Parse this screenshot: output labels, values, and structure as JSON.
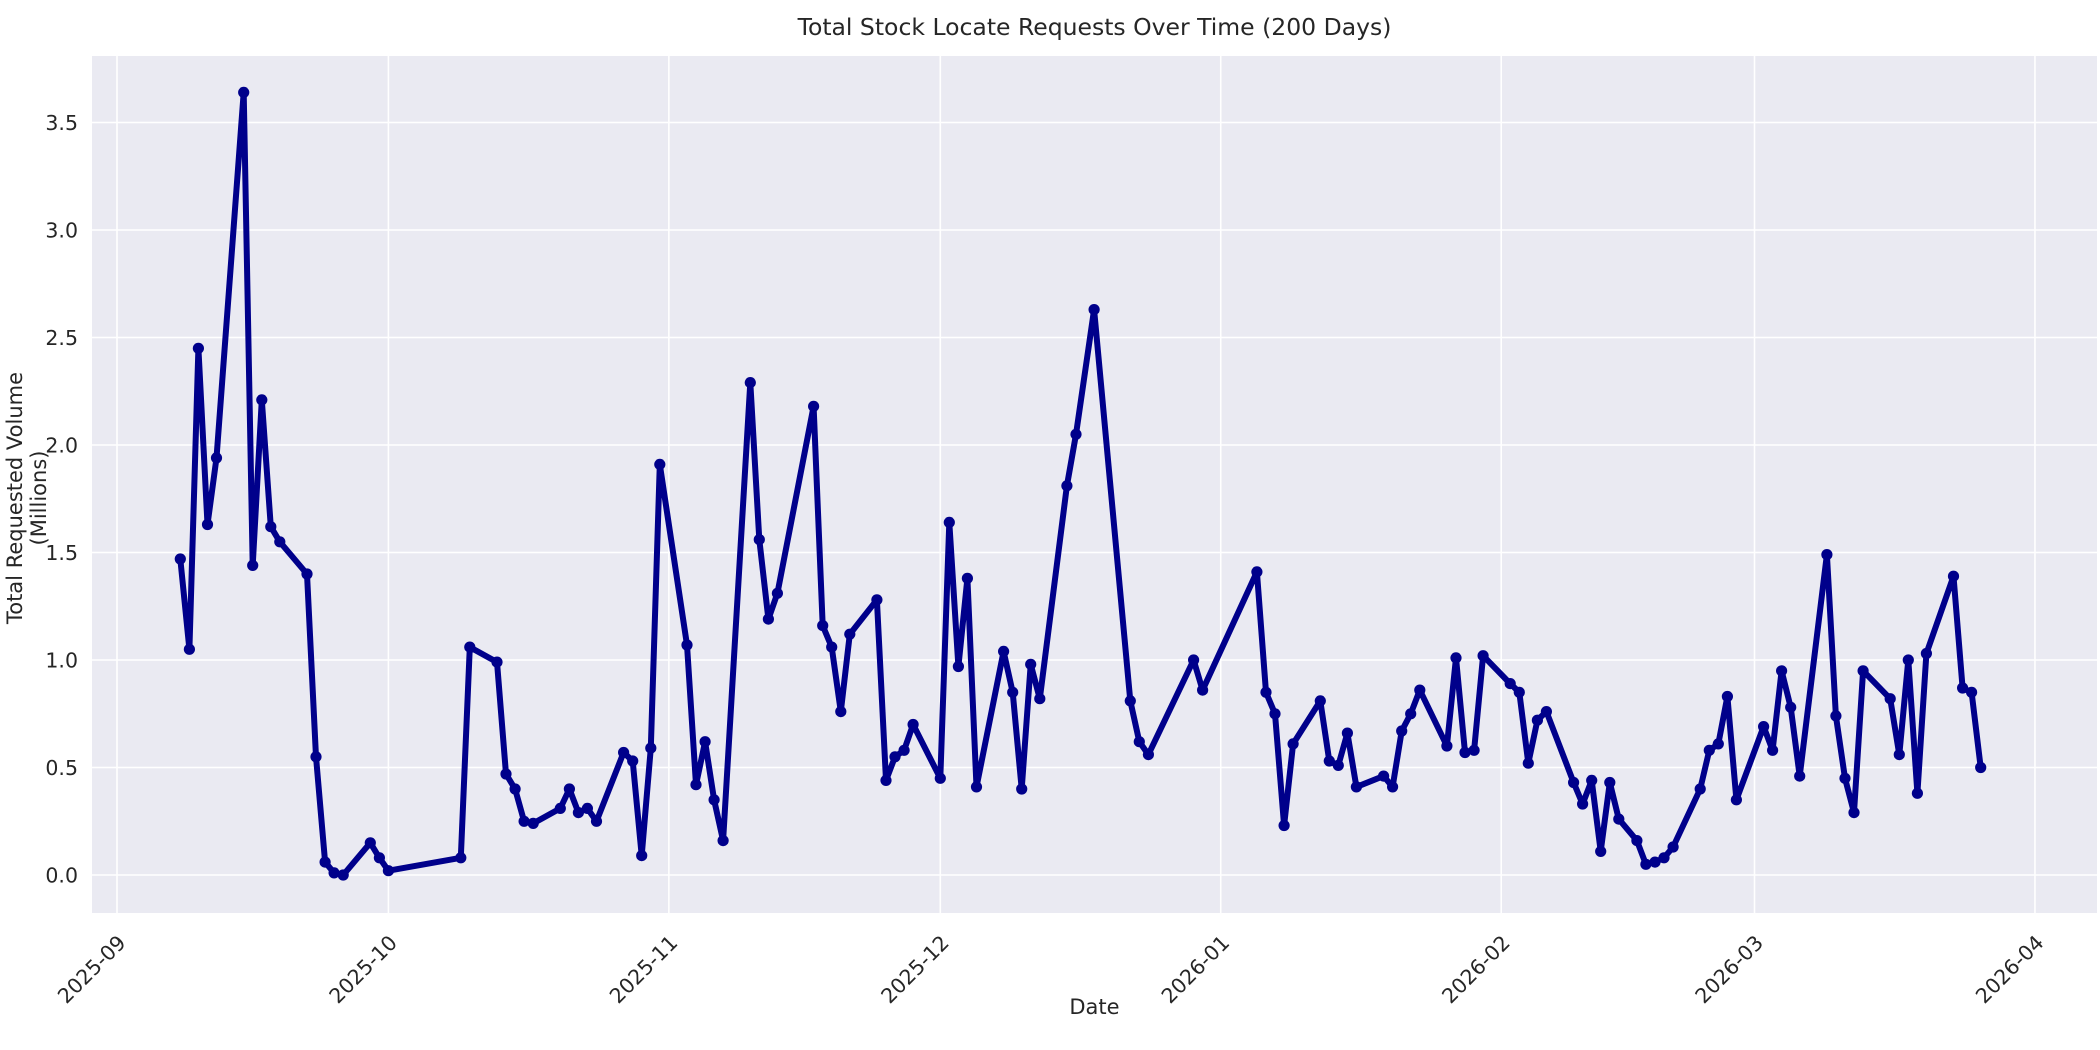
{
  "figure": {
    "title": "Total Stock Locate Requests Over Time (200 Days)",
    "xlabel": "Date",
    "ylabel": "Total Requested Volume (Millions)"
  },
  "chart_data": {
    "type": "line",
    "title": "Total Stock Locate Requests Over Time (200 Days)",
    "xlabel": "Date",
    "ylabel": "Total Requested Volume (Millions)",
    "legend": null,
    "grid": true,
    "style": "seaborn-darkgrid",
    "axes_background": "#eaeaf2",
    "grid_color": "#ffffff",
    "text_color": "#262626",
    "line_color": "#00008b",
    "marker": "o",
    "n_points": 132,
    "y_ticks": [
      0.0,
      0.5,
      1.0,
      1.5,
      2.0,
      2.5,
      3.0,
      3.5
    ],
    "y_tick_labels": [
      "0.0",
      "0.5",
      "1.0",
      "1.5",
      "2.0",
      "2.5",
      "3.0",
      "3.5"
    ],
    "ylim": [
      -0.19,
      3.83
    ],
    "x_ticks": [
      {
        "date": "2025-09-01",
        "label": "2025-09"
      },
      {
        "date": "2025-10-01",
        "label": "2025-10"
      },
      {
        "date": "2025-11-01",
        "label": "2025-11"
      },
      {
        "date": "2025-12-01",
        "label": "2025-12"
      },
      {
        "date": "2026-01-01",
        "label": "2026-01"
      },
      {
        "date": "2026-02-01",
        "label": "2026-02"
      },
      {
        "date": "2026-03-01",
        "label": "2026-03"
      },
      {
        "date": "2026-04-01",
        "label": "2026-04"
      }
    ],
    "xlim_dates": [
      "2025-08-29",
      "2026-04-07"
    ],
    "series": [
      {
        "name": "Total Requested Volume (Millions)",
        "points": [
          {
            "d": "2025-09-08",
            "v": 1.47
          },
          {
            "d": "2025-09-09",
            "v": 1.05
          },
          {
            "d": "2025-09-10",
            "v": 2.45
          },
          {
            "d": "2025-09-11",
            "v": 1.63
          },
          {
            "d": "2025-09-12",
            "v": 1.94
          },
          {
            "d": "2025-09-15",
            "v": 3.64
          },
          {
            "d": "2025-09-16",
            "v": 1.44
          },
          {
            "d": "2025-09-17",
            "v": 2.21
          },
          {
            "d": "2025-09-18",
            "v": 1.62
          },
          {
            "d": "2025-09-19",
            "v": 1.55
          },
          {
            "d": "2025-09-22",
            "v": 1.4
          },
          {
            "d": "2025-09-23",
            "v": 0.55
          },
          {
            "d": "2025-09-24",
            "v": 0.06
          },
          {
            "d": "2025-09-25",
            "v": 0.01
          },
          {
            "d": "2025-09-26",
            "v": 0.0
          },
          {
            "d": "2025-09-29",
            "v": 0.15
          },
          {
            "d": "2025-09-30",
            "v": 0.08
          },
          {
            "d": "2025-10-01",
            "v": 0.02
          },
          {
            "d": "2025-10-09",
            "v": 0.08
          },
          {
            "d": "2025-10-10",
            "v": 1.06
          },
          {
            "d": "2025-10-13",
            "v": 0.99
          },
          {
            "d": "2025-10-14",
            "v": 0.47
          },
          {
            "d": "2025-10-15",
            "v": 0.4
          },
          {
            "d": "2025-10-16",
            "v": 0.25
          },
          {
            "d": "2025-10-17",
            "v": 0.24
          },
          {
            "d": "2025-10-20",
            "v": 0.31
          },
          {
            "d": "2025-10-21",
            "v": 0.4
          },
          {
            "d": "2025-10-22",
            "v": 0.29
          },
          {
            "d": "2025-10-23",
            "v": 0.31
          },
          {
            "d": "2025-10-24",
            "v": 0.25
          },
          {
            "d": "2025-10-27",
            "v": 0.57
          },
          {
            "d": "2025-10-28",
            "v": 0.53
          },
          {
            "d": "2025-10-29",
            "v": 0.09
          },
          {
            "d": "2025-10-30",
            "v": 0.59
          },
          {
            "d": "2025-10-31",
            "v": 1.91
          },
          {
            "d": "2025-11-03",
            "v": 1.07
          },
          {
            "d": "2025-11-04",
            "v": 0.42
          },
          {
            "d": "2025-11-05",
            "v": 0.62
          },
          {
            "d": "2025-11-06",
            "v": 0.35
          },
          {
            "d": "2025-11-07",
            "v": 0.16
          },
          {
            "d": "2025-11-10",
            "v": 2.29
          },
          {
            "d": "2025-11-11",
            "v": 1.56
          },
          {
            "d": "2025-11-12",
            "v": 1.19
          },
          {
            "d": "2025-11-13",
            "v": 1.31
          },
          {
            "d": "2025-11-17",
            "v": 2.18
          },
          {
            "d": "2025-11-18",
            "v": 1.16
          },
          {
            "d": "2025-11-19",
            "v": 1.06
          },
          {
            "d": "2025-11-20",
            "v": 0.76
          },
          {
            "d": "2025-11-21",
            "v": 1.12
          },
          {
            "d": "2025-11-24",
            "v": 1.28
          },
          {
            "d": "2025-11-25",
            "v": 0.44
          },
          {
            "d": "2025-11-26",
            "v": 0.55
          },
          {
            "d": "2025-11-27",
            "v": 0.58
          },
          {
            "d": "2025-11-28",
            "v": 0.7
          },
          {
            "d": "2025-12-01",
            "v": 0.45
          },
          {
            "d": "2025-12-02",
            "v": 1.64
          },
          {
            "d": "2025-12-03",
            "v": 0.97
          },
          {
            "d": "2025-12-04",
            "v": 1.38
          },
          {
            "d": "2025-12-05",
            "v": 0.41
          },
          {
            "d": "2025-12-08",
            "v": 1.04
          },
          {
            "d": "2025-12-09",
            "v": 0.85
          },
          {
            "d": "2025-12-10",
            "v": 0.4
          },
          {
            "d": "2025-12-11",
            "v": 0.98
          },
          {
            "d": "2025-12-12",
            "v": 0.82
          },
          {
            "d": "2025-12-15",
            "v": 1.81
          },
          {
            "d": "2025-12-16",
            "v": 2.05
          },
          {
            "d": "2025-12-18",
            "v": 2.63
          },
          {
            "d": "2025-12-22",
            "v": 0.81
          },
          {
            "d": "2025-12-23",
            "v": 0.62
          },
          {
            "d": "2025-12-24",
            "v": 0.56
          },
          {
            "d": "2025-12-29",
            "v": 1.0
          },
          {
            "d": "2025-12-30",
            "v": 0.86
          },
          {
            "d": "2026-01-05",
            "v": 1.41
          },
          {
            "d": "2026-01-06",
            "v": 0.85
          },
          {
            "d": "2026-01-07",
            "v": 0.75
          },
          {
            "d": "2026-01-08",
            "v": 0.23
          },
          {
            "d": "2026-01-09",
            "v": 0.61
          },
          {
            "d": "2026-01-12",
            "v": 0.81
          },
          {
            "d": "2026-01-13",
            "v": 0.53
          },
          {
            "d": "2026-01-14",
            "v": 0.51
          },
          {
            "d": "2026-01-15",
            "v": 0.66
          },
          {
            "d": "2026-01-16",
            "v": 0.41
          },
          {
            "d": "2026-01-19",
            "v": 0.46
          },
          {
            "d": "2026-01-20",
            "v": 0.41
          },
          {
            "d": "2026-01-21",
            "v": 0.67
          },
          {
            "d": "2026-01-22",
            "v": 0.75
          },
          {
            "d": "2026-01-23",
            "v": 0.86
          },
          {
            "d": "2026-01-26",
            "v": 0.6
          },
          {
            "d": "2026-01-27",
            "v": 1.01
          },
          {
            "d": "2026-01-28",
            "v": 0.57
          },
          {
            "d": "2026-01-29",
            "v": 0.58
          },
          {
            "d": "2026-01-30",
            "v": 1.02
          },
          {
            "d": "2026-02-02",
            "v": 0.89
          },
          {
            "d": "2026-02-03",
            "v": 0.85
          },
          {
            "d": "2026-02-04",
            "v": 0.52
          },
          {
            "d": "2026-02-05",
            "v": 0.72
          },
          {
            "d": "2026-02-06",
            "v": 0.76
          },
          {
            "d": "2026-02-09",
            "v": 0.43
          },
          {
            "d": "2026-02-10",
            "v": 0.33
          },
          {
            "d": "2026-02-11",
            "v": 0.44
          },
          {
            "d": "2026-02-12",
            "v": 0.11
          },
          {
            "d": "2026-02-13",
            "v": 0.43
          },
          {
            "d": "2026-02-14",
            "v": 0.26
          },
          {
            "d": "2026-02-16",
            "v": 0.16
          },
          {
            "d": "2026-02-17",
            "v": 0.05
          },
          {
            "d": "2026-02-18",
            "v": 0.06
          },
          {
            "d": "2026-02-19",
            "v": 0.08
          },
          {
            "d": "2026-02-20",
            "v": 0.13
          },
          {
            "d": "2026-02-23",
            "v": 0.4
          },
          {
            "d": "2026-02-24",
            "v": 0.58
          },
          {
            "d": "2026-02-25",
            "v": 0.61
          },
          {
            "d": "2026-02-26",
            "v": 0.83
          },
          {
            "d": "2026-02-27",
            "v": 0.35
          },
          {
            "d": "2026-03-02",
            "v": 0.69
          },
          {
            "d": "2026-03-03",
            "v": 0.58
          },
          {
            "d": "2026-03-04",
            "v": 0.95
          },
          {
            "d": "2026-03-05",
            "v": 0.78
          },
          {
            "d": "2026-03-06",
            "v": 0.46
          },
          {
            "d": "2026-03-09",
            "v": 1.49
          },
          {
            "d": "2026-03-10",
            "v": 0.74
          },
          {
            "d": "2026-03-11",
            "v": 0.45
          },
          {
            "d": "2026-03-12",
            "v": 0.29
          },
          {
            "d": "2026-03-13",
            "v": 0.95
          },
          {
            "d": "2026-03-16",
            "v": 0.82
          },
          {
            "d": "2026-03-17",
            "v": 0.56
          },
          {
            "d": "2026-03-18",
            "v": 1.0
          },
          {
            "d": "2026-03-19",
            "v": 0.38
          },
          {
            "d": "2026-03-20",
            "v": 1.03
          },
          {
            "d": "2026-03-23",
            "v": 1.39
          },
          {
            "d": "2026-03-24",
            "v": 0.87
          },
          {
            "d": "2026-03-25",
            "v": 0.85
          },
          {
            "d": "2026-03-26",
            "v": 0.5
          }
        ]
      }
    ]
  }
}
